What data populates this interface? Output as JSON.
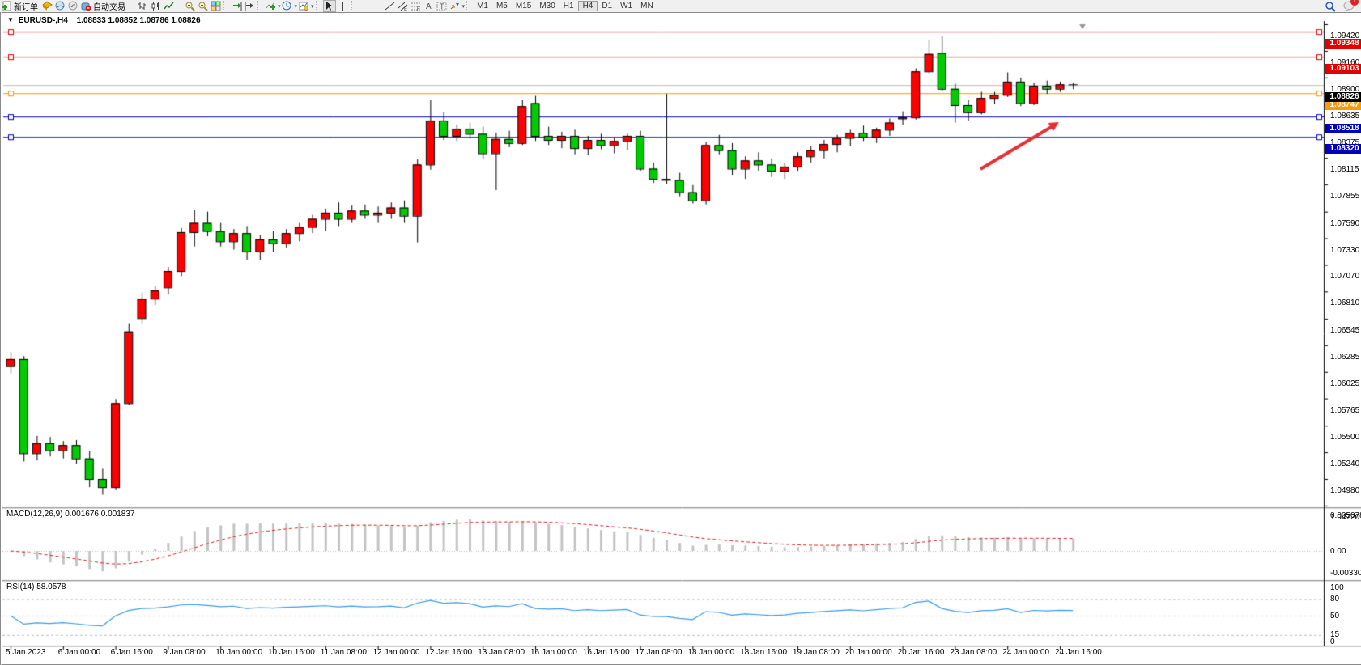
{
  "toolbar": {
    "new_order_label": "新订单",
    "auto_trading_label": "自动交易",
    "timeframes": [
      "M1",
      "M5",
      "M15",
      "M30",
      "H1",
      "H4",
      "D1",
      "W1",
      "MN"
    ],
    "active_timeframe": "H4",
    "notification_badge": "1"
  },
  "chart_window": {
    "symbol_period": "EURUSD-,H4",
    "ohlc": "1.08833 1.08852 1.08786 1.08826",
    "dropdown_glyph": "▼"
  },
  "price_axis_ticks": [
    "1.09420",
    "1.09160",
    "1.08900",
    "1.08635",
    "1.08375",
    "1.08115",
    "1.07855",
    "1.07590",
    "1.07330",
    "1.07070",
    "1.06810",
    "1.06545",
    "1.06285",
    "1.06025",
    "1.05765",
    "1.05500",
    "1.05240",
    "1.04980",
    "1.04720"
  ],
  "price_lines": [
    {
      "label": "1.09348",
      "price": 1.09348,
      "color": "#e00000"
    },
    {
      "label": "1.09103",
      "price": 1.09103,
      "color": "#e00000"
    },
    {
      "label": "1.08747",
      "price": 1.08747,
      "color": "#ff9900"
    },
    {
      "label": "1.08518",
      "price": 1.08518,
      "color": "#0000bb"
    },
    {
      "label": "1.08320",
      "price": 1.0832,
      "color": "#0000bb"
    }
  ],
  "current_price": {
    "label": "1.08826",
    "price": 1.08826,
    "line_color": "#bdbdbd",
    "badge_color": "#000000"
  },
  "macd_panel": {
    "label": "MACD(12,26,9) 0.001676 0.001837",
    "axis_max": "0.005078",
    "axis_zero": "0.00",
    "axis_min": "-0.003301"
  },
  "rsi_panel": {
    "label": "RSI(14) 58.0578",
    "axis": [
      "100",
      "80",
      "50",
      "15",
      "0"
    ]
  },
  "chart_data": {
    "type": "candlestick",
    "symbol": "EURUSD-",
    "period": "H4",
    "title": "EURUSD-,H4  1.08833 1.08852 1.08786 1.08826",
    "up_color": "#ff0000",
    "down_color": "#00cc00",
    "note": "Chinese color convention: red = bullish, green = bearish",
    "y_ticks": [
      1.0942,
      1.0916,
      1.089,
      1.08635,
      1.08375,
      1.08115,
      1.07855,
      1.0759,
      1.0733,
      1.0707,
      1.0681,
      1.06545,
      1.06285,
      1.06025,
      1.05765,
      1.055,
      1.0524,
      1.0498,
      1.0472
    ],
    "x_labels": [
      "5 Jan 2023",
      "6 Jan 00:00",
      "6 Jan 16:00",
      "9 Jan 08:00",
      "10 Jan 00:00",
      "10 Jan 16:00",
      "11 Jan 08:00",
      "12 Jan 00:00",
      "12 Jan 16:00",
      "13 Jan 08:00",
      "16 Jan 00:00",
      "16 Jan 16:00",
      "17 Jan 08:00",
      "18 Jan 00:00",
      "18 Jan 16:00",
      "19 Jan 08:00",
      "20 Jan 00:00",
      "20 Jan 16:00",
      "23 Jan 08:00",
      "24 Jan 00:00",
      "24 Jan 16:00"
    ],
    "candles": [
      [
        1.0608,
        1.0622,
        1.0601,
        1.0615
      ],
      [
        1.0615,
        1.0618,
        1.0515,
        1.0523
      ],
      [
        1.0523,
        1.054,
        1.0516,
        1.0533
      ],
      [
        1.0533,
        1.0539,
        1.052,
        1.0526
      ],
      [
        1.0526,
        1.0535,
        1.0518,
        1.0531
      ],
      [
        1.0531,
        1.0536,
        1.0513,
        1.0518
      ],
      [
        1.0518,
        1.0525,
        1.049,
        1.0498
      ],
      [
        1.0498,
        1.0508,
        1.04825,
        1.049
      ],
      [
        1.049,
        1.0576,
        1.0487,
        1.0572
      ],
      [
        1.0572,
        1.065,
        1.057,
        1.0642
      ],
      [
        1.0655,
        1.068,
        1.065,
        1.0674
      ],
      [
        1.0674,
        1.0686,
        1.0668,
        1.0682
      ],
      [
        1.0685,
        1.0705,
        1.0678,
        1.0701
      ],
      [
        1.0701,
        1.0743,
        1.0696,
        1.0739
      ],
      [
        1.0739,
        1.07605,
        1.0725,
        1.0748
      ],
      [
        1.0748,
        1.0759,
        1.0735,
        1.074
      ],
      [
        1.074,
        1.0748,
        1.0725,
        1.073
      ],
      [
        1.073,
        1.0742,
        1.0722,
        1.0738
      ],
      [
        1.0738,
        1.0745,
        1.0712,
        1.072
      ],
      [
        1.072,
        1.0736,
        1.0712,
        1.0732
      ],
      [
        1.0732,
        1.074,
        1.072,
        1.0728
      ],
      [
        1.0728,
        1.0742,
        1.0724,
        1.0738
      ],
      [
        1.0738,
        1.0748,
        1.073,
        1.0744
      ],
      [
        1.0744,
        1.0756,
        1.0738,
        1.0752
      ],
      [
        1.0752,
        1.0762,
        1.074,
        1.0758
      ],
      [
        1.0758,
        1.0768,
        1.0745,
        1.0752
      ],
      [
        1.0752,
        1.0765,
        1.0748,
        1.076
      ],
      [
        1.076,
        1.0766,
        1.0752,
        1.0756
      ],
      [
        1.0756,
        1.0764,
        1.0748,
        1.0758
      ],
      [
        1.0758,
        1.0768,
        1.0752,
        1.0763
      ],
      [
        1.0763,
        1.077,
        1.0748,
        1.0755
      ],
      [
        1.0755,
        1.081,
        1.0729,
        1.0805
      ],
      [
        1.0805,
        1.0868,
        1.08,
        1.0848
      ],
      [
        1.0848,
        1.0856,
        1.0829,
        1.0833
      ],
      [
        1.0833,
        1.0844,
        1.0828,
        1.084
      ],
      [
        1.084,
        1.0846,
        1.083,
        1.0835
      ],
      [
        1.0835,
        1.0842,
        1.081,
        1.0816
      ],
      [
        1.0816,
        1.0836,
        1.078,
        1.083
      ],
      [
        1.083,
        1.0838,
        1.0822,
        1.0826
      ],
      [
        1.0826,
        1.0868,
        1.0824,
        1.0862
      ],
      [
        1.0865,
        1.0872,
        1.0828,
        1.0833
      ],
      [
        1.0833,
        1.0842,
        1.0824,
        1.0829
      ],
      [
        1.0829,
        1.0837,
        1.0821,
        1.0833
      ],
      [
        1.0833,
        1.0839,
        1.0815,
        1.0821
      ],
      [
        1.0821,
        1.0833,
        1.0814,
        1.0829
      ],
      [
        1.0829,
        1.0835,
        1.082,
        1.0824
      ],
      [
        1.0824,
        1.0831,
        1.0816,
        1.0828
      ],
      [
        1.0828,
        1.0835,
        1.0819,
        1.0833
      ],
      [
        1.0833,
        1.0838,
        1.0799,
        1.0801
      ],
      [
        1.0801,
        1.0807,
        1.0787,
        1.0791
      ],
      [
        1.0791,
        1.0874,
        1.0786,
        1.079
      ],
      [
        1.079,
        1.0797,
        1.0774,
        1.0778
      ],
      [
        1.0778,
        1.0785,
        1.0767,
        1.077
      ],
      [
        1.077,
        1.0827,
        1.0766,
        1.0824
      ],
      [
        1.0824,
        1.0834,
        1.0815,
        1.0819
      ],
      [
        1.0819,
        1.0826,
        1.0795,
        1.0801
      ],
      [
        1.0801,
        1.0813,
        1.0791,
        1.0809
      ],
      [
        1.0809,
        1.0817,
        1.0799,
        1.0805
      ],
      [
        1.0805,
        1.0811,
        1.0793,
        1.0799
      ],
      [
        1.0799,
        1.0807,
        1.0791,
        1.0803
      ],
      [
        1.0803,
        1.0817,
        1.0799,
        1.0813
      ],
      [
        1.0813,
        1.0823,
        1.0807,
        1.0819
      ],
      [
        1.0819,
        1.0829,
        1.0811,
        1.0825
      ],
      [
        1.0825,
        1.0834,
        1.0817,
        1.0831
      ],
      [
        1.0831,
        1.0839,
        1.0823,
        1.0836
      ],
      [
        1.0836,
        1.0843,
        1.0828,
        1.0832
      ],
      [
        1.0832,
        1.0841,
        1.0826,
        1.0839
      ],
      [
        1.0839,
        1.085,
        1.0833,
        1.0846
      ],
      [
        1.085,
        1.0857,
        1.0844,
        1.0851
      ],
      [
        1.0851,
        1.0899,
        1.0849,
        1.0896
      ],
      [
        1.0896,
        1.0927,
        1.0894,
        1.0913
      ],
      [
        1.0914,
        1.093,
        1.0877,
        1.0879
      ],
      [
        1.0879,
        1.0884,
        1.0846,
        1.0863
      ],
      [
        1.0863,
        1.0868,
        1.0848,
        1.0856
      ],
      [
        1.0856,
        1.0876,
        1.0854,
        1.087
      ],
      [
        1.087,
        1.0876,
        1.0864,
        1.0873
      ],
      [
        1.0873,
        1.0895,
        1.0871,
        1.0886
      ],
      [
        1.0886,
        1.089,
        1.0862,
        1.0865
      ],
      [
        1.0865,
        1.0885,
        1.0863,
        1.0882
      ],
      [
        1.0882,
        1.0887,
        1.0874,
        1.0879
      ],
      [
        1.0879,
        1.0886,
        1.0876,
        1.08833
      ],
      [
        1.08833,
        1.08852,
        1.08786,
        1.08826
      ]
    ],
    "indicators": [
      {
        "name": "MACD",
        "params": [
          12,
          26,
          9
        ],
        "shown_values": [
          0.001676,
          0.001837
        ],
        "axis": [
          0.005078,
          0.0,
          -0.003301
        ]
      },
      {
        "name": "RSI",
        "params": [
          14
        ],
        "shown_value": 58.0578,
        "levels": [
          80,
          50,
          15
        ],
        "axis_range": [
          0,
          100
        ]
      }
    ],
    "annotations": [
      {
        "type": "arrow",
        "color": "#e53030",
        "from_xy": [
          1208,
          208
        ],
        "to_xy": [
          1305,
          150
        ],
        "meaning": "points up toward 1.08518 level"
      }
    ],
    "legend_position": "none",
    "grid": "off"
  }
}
